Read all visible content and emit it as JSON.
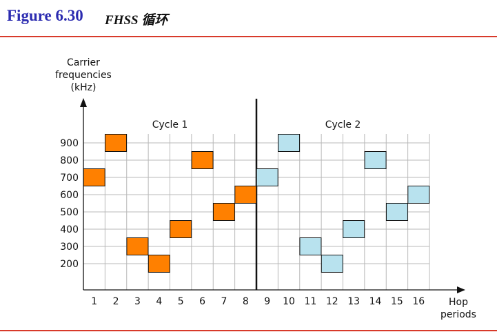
{
  "figure": {
    "number": "Figure 6.30",
    "name": "FHSS 循环"
  },
  "colors": {
    "cycle1": "#ff8000",
    "cycle2": "#b8e2ee",
    "grid": "#b8b8b8",
    "rule": "#d83a2a",
    "title": "#2b2bb0"
  },
  "chart_data": {
    "type": "scatter",
    "ylabel_lines": [
      "Carrier",
      "frequencies",
      "(kHz)"
    ],
    "xlabel_lines": [
      "Hop",
      "periods"
    ],
    "x_ticks": [
      "1",
      "2",
      "3",
      "4",
      "5",
      "6",
      "7",
      "8",
      "9",
      "10",
      "11",
      "12",
      "13",
      "14",
      "15",
      "16"
    ],
    "y_ticks": [
      200,
      300,
      400,
      500,
      600,
      700,
      800,
      900
    ],
    "xlim": [
      0.5,
      16.5
    ],
    "ylim": [
      50,
      950
    ],
    "grid": true,
    "cycle_divider_after_period": 8.5,
    "series": [
      {
        "name": "Cycle 1",
        "x": [
          1,
          2,
          3,
          4,
          5,
          6,
          7,
          8
        ],
        "y": [
          700,
          900,
          300,
          200,
          400,
          800,
          500,
          600
        ]
      },
      {
        "name": "Cycle 2",
        "x": [
          9,
          10,
          11,
          12,
          13,
          14,
          15,
          16
        ],
        "y": [
          700,
          900,
          300,
          200,
          400,
          800,
          500,
          600
        ]
      }
    ]
  }
}
